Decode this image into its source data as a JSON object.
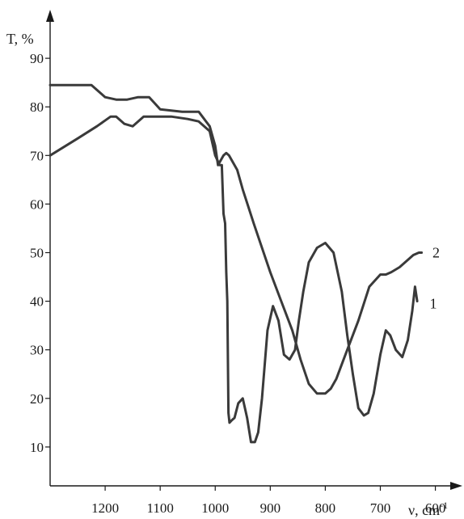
{
  "chart_data": {
    "type": "line",
    "ylabel": "T, %",
    "xlabel": "ν, cm",
    "xlabel_superscript": "-1",
    "xlim": [
      1300,
      570
    ],
    "ylim": [
      2,
      100
    ],
    "x_ticks": [
      1200,
      1100,
      1000,
      900,
      800,
      700,
      600
    ],
    "y_ticks": [
      10,
      20,
      30,
      40,
      50,
      60,
      70,
      80,
      90
    ],
    "series": [
      {
        "name": "1",
        "x": [
          1300,
          1250,
          1215,
          1190,
          1180,
          1165,
          1150,
          1140,
          1130,
          1115,
          1080,
          1050,
          1030,
          1010,
          1000,
          992,
          988,
          985,
          982,
          980,
          978,
          976,
          974,
          970,
          965,
          958,
          950,
          942,
          935,
          928,
          922,
          915,
          905,
          895,
          885,
          875,
          865,
          855,
          848,
          840,
          830,
          815,
          800,
          785,
          770,
          760,
          750,
          740,
          730,
          722,
          712,
          700,
          690,
          682,
          672,
          660,
          650,
          642,
          637,
          633
        ],
        "y": [
          70,
          73.5,
          76,
          78,
          78,
          76.5,
          76,
          77,
          78,
          78,
          78,
          77.5,
          77,
          75,
          70,
          68,
          68,
          58,
          56,
          46,
          40,
          17,
          15,
          15.5,
          16,
          19,
          20,
          16,
          11,
          11,
          13,
          20,
          34,
          39,
          36,
          29,
          28,
          30,
          36,
          42,
          48,
          51,
          52,
          50,
          42,
          33,
          25,
          18,
          16.5,
          17,
          21,
          29,
          34,
          33,
          30,
          28.5,
          32,
          38,
          43,
          40
        ]
      },
      {
        "name": "2",
        "x": [
          1300,
          1240,
          1225,
          1200,
          1180,
          1160,
          1140,
          1120,
          1100,
          1060,
          1030,
          1010,
          1000,
          995,
          990,
          985,
          980,
          975,
          970,
          960,
          950,
          930,
          900,
          880,
          860,
          845,
          830,
          815,
          800,
          790,
          780,
          770,
          760,
          740,
          720,
          700,
          690,
          680,
          665,
          650,
          640,
          630,
          625
        ],
        "y": [
          84.5,
          84.5,
          84.5,
          82,
          81.5,
          81.5,
          82,
          82,
          79.5,
          79,
          79,
          76,
          72,
          68,
          69,
          70,
          70.5,
          70,
          69,
          67,
          63,
          56,
          46,
          40,
          34,
          28,
          23,
          21,
          21,
          22,
          24,
          27,
          30,
          36,
          43,
          45.5,
          45.5,
          46,
          47,
          48.5,
          49.5,
          50,
          50
        ]
      }
    ],
    "series_label_points": [
      {
        "label": "1",
        "x": 625,
        "y": 39.5
      },
      {
        "label": "2",
        "x": 620,
        "y": 50
      }
    ],
    "grid": false,
    "line_color": "#3a3a3a"
  }
}
